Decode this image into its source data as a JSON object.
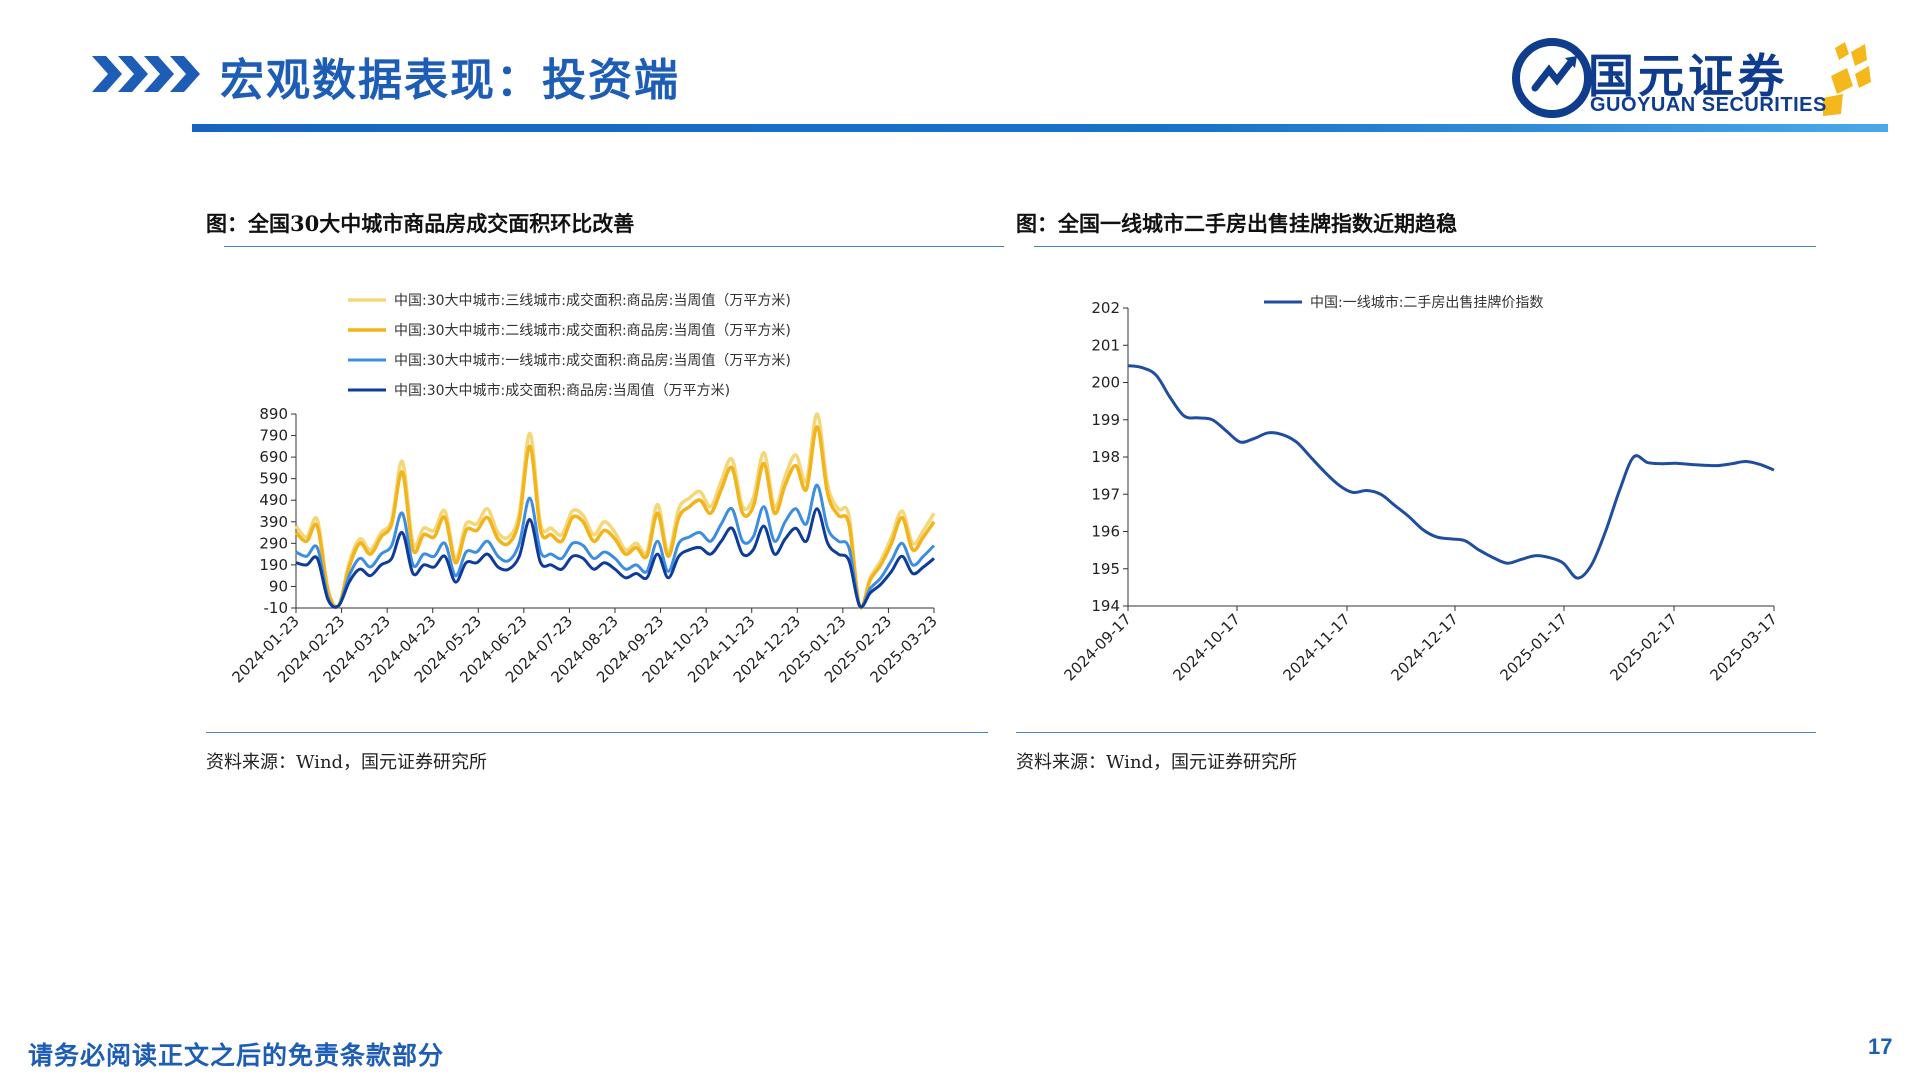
{
  "header": {
    "title": "宏观数据表现：投资端",
    "logo_cn": "国元证券",
    "logo_en": "GUOYUAN SECURITIES",
    "accent_color": "#1e5db5"
  },
  "footer": {
    "disclaimer": "请务必阅读正文之后的免责条款部分",
    "page_number": "17"
  },
  "charts": {
    "left_title": "图：全国30大中城市商品房成交面积环比改善",
    "right_title": "图：全国一线城市二手房出售挂牌指数近期趋稳",
    "left_source": "资料来源：Wind，国元证券研究所",
    "right_source": "资料来源：Wind，国元证券研究所"
  },
  "chart_data": [
    {
      "type": "line",
      "title": "图：全国30大中城市商品房成交面积环比改善",
      "x_tick_labels": [
        "2024-01-23",
        "2024-02-23",
        "2024-03-23",
        "2024-04-23",
        "2024-05-23",
        "2024-06-23",
        "2024-07-23",
        "2024-08-23",
        "2024-09-23",
        "2024-10-23",
        "2024-11-23",
        "2024-12-23",
        "2025-01-23",
        "2025-02-23",
        "2025-03-23"
      ],
      "y_tick_labels": [
        "-10",
        "90",
        "190",
        "290",
        "390",
        "490",
        "590",
        "690",
        "790",
        "890"
      ],
      "ylim": [
        -10,
        890
      ],
      "legend_position": "top",
      "series": [
        {
          "name": "中国:30大中城市:三线城市:成交面积:商品房:当周值（万平方米)",
          "color": "#f5d77a",
          "width": 3.5,
          "values": [
            370,
            320,
            400,
            80,
            0,
            200,
            310,
            260,
            340,
            400,
            670,
            290,
            360,
            350,
            440,
            220,
            380,
            380,
            450,
            340,
            320,
            430,
            800,
            380,
            360,
            330,
            440,
            420,
            330,
            390,
            340,
            260,
            290,
            250,
            470,
            250,
            450,
            500,
            530,
            460,
            580,
            680,
            460,
            500,
            710,
            460,
            600,
            700,
            580,
            890,
            560,
            450,
            420,
            0,
            130,
            210,
            320,
            440,
            290,
            350,
            430
          ]
        },
        {
          "name": "中国:30大中城市:二线城市:成交面积:商品房:当周值（万平方米)",
          "color": "#f2b41c",
          "width": 3.5,
          "values": [
            340,
            300,
            370,
            70,
            0,
            180,
            290,
            240,
            320,
            380,
            620,
            260,
            330,
            320,
            410,
            200,
            350,
            350,
            410,
            310,
            290,
            400,
            740,
            350,
            330,
            300,
            410,
            390,
            300,
            350,
            310,
            240,
            270,
            230,
            430,
            230,
            410,
            460,
            490,
            430,
            540,
            640,
            430,
            460,
            660,
            430,
            560,
            650,
            540,
            830,
            520,
            420,
            380,
            0,
            120,
            190,
            290,
            410,
            260,
            320,
            390
          ]
        },
        {
          "name": "中国:30大中城市:一线城市:成交面积:商品房:当周值（万平方米)",
          "color": "#3d8ee0",
          "width": 3,
          "values": [
            250,
            230,
            270,
            40,
            0,
            140,
            220,
            180,
            240,
            280,
            430,
            190,
            240,
            230,
            290,
            140,
            250,
            250,
            300,
            230,
            210,
            290,
            500,
            250,
            240,
            220,
            290,
            280,
            220,
            250,
            220,
            170,
            190,
            160,
            300,
            160,
            290,
            320,
            340,
            300,
            380,
            450,
            300,
            320,
            460,
            300,
            390,
            450,
            380,
            560,
            360,
            300,
            270,
            0,
            80,
            130,
            210,
            290,
            190,
            230,
            280
          ]
        },
        {
          "name": "中国:30大中城市:成交面积:商品房:当周值（万平方米)",
          "color": "#0f3c9a",
          "width": 3,
          "values": [
            200,
            190,
            220,
            30,
            0,
            110,
            170,
            140,
            190,
            220,
            340,
            150,
            190,
            180,
            230,
            110,
            200,
            200,
            240,
            180,
            170,
            230,
            400,
            200,
            190,
            170,
            230,
            220,
            170,
            200,
            170,
            130,
            150,
            130,
            240,
            130,
            230,
            260,
            270,
            240,
            300,
            360,
            240,
            260,
            370,
            240,
            310,
            360,
            300,
            450,
            290,
            240,
            210,
            0,
            60,
            100,
            160,
            230,
            150,
            180,
            220
          ]
        }
      ]
    },
    {
      "type": "line",
      "title": "图：全国一线城市二手房出售挂牌指数近期趋稳",
      "x_tick_labels": [
        "2024-09-17",
        "2024-10-17",
        "2024-11-17",
        "2024-12-17",
        "2025-01-17",
        "2025-02-17",
        "2025-03-17"
      ],
      "y_tick_labels": [
        "194",
        "195",
        "196",
        "197",
        "198",
        "199",
        "200",
        "201",
        "202"
      ],
      "ylim": [
        194,
        202
      ],
      "legend_position": "top",
      "series": [
        {
          "name": "中国:一线城市:二手房出售挂牌价指数",
          "color": "#1f4e9e",
          "width": 3,
          "values": [
            200.45,
            200.4,
            200.2,
            199.6,
            199.1,
            199.05,
            199.0,
            198.7,
            198.4,
            198.5,
            198.65,
            198.6,
            198.4,
            198.0,
            197.6,
            197.25,
            197.05,
            197.1,
            197.0,
            196.7,
            196.4,
            196.05,
            195.85,
            195.8,
            195.75,
            195.5,
            195.3,
            195.15,
            195.25,
            195.35,
            195.3,
            195.15,
            194.75,
            195.1,
            196.0,
            197.1,
            198.0,
            197.85,
            197.82,
            197.83,
            197.8,
            197.78,
            197.77,
            197.82,
            197.88,
            197.8,
            197.65
          ]
        }
      ]
    }
  ]
}
